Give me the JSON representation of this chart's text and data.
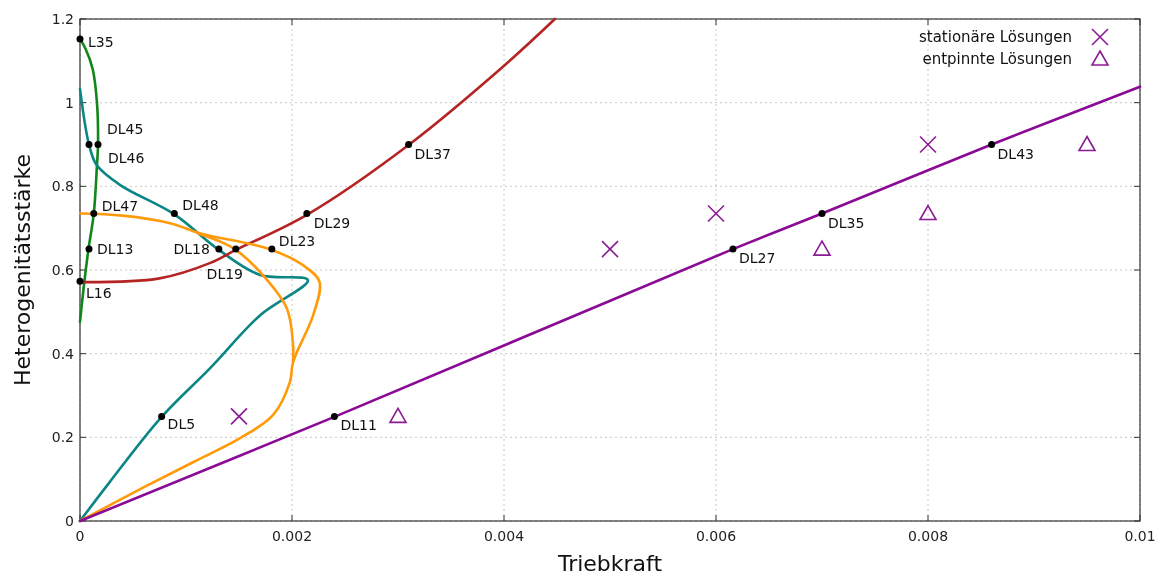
{
  "chart_data": {
    "type": "line",
    "xlabel": "Triebkraft",
    "ylabel": "Heterogenitätsstärke",
    "xlim": [
      0,
      0.01
    ],
    "ylim": [
      0,
      1.2
    ],
    "xticks": [
      0,
      0.002,
      0.004,
      0.006,
      0.008,
      0.01
    ],
    "yticks": [
      0,
      0.2,
      0.4,
      0.6,
      0.8,
      1,
      1.2
    ],
    "grid": true,
    "legend": "top right",
    "line_style": "solid",
    "series": [
      {
        "color": "#11861a",
        "x": [
          0,
          4e-05,
          8e-05,
          0.00013,
          0.00016,
          0.00017,
          0.00016,
          0.00012,
          5e-05,
          0
        ],
        "values": [
          0.476,
          0.57,
          0.65,
          0.735,
          0.85,
          0.9,
          1.0,
          1.08,
          1.13,
          1.152
        ]
      },
      {
        "color": "#0c8585",
        "x": [
          0,
          8.5e-05,
          0.000157,
          0.00038,
          0.00089,
          0.00131,
          0.0017,
          0.00215,
          0.0017,
          0.00123,
          0.00076,
          0.00028,
          0
        ],
        "values": [
          1.033,
          0.9,
          0.851,
          0.803,
          0.733,
          0.648,
          0.588,
          0.576,
          0.492,
          0.366,
          0.246,
          0.093,
          0
        ]
      },
      {
        "color": "#b52323",
        "x": [
          0,
          0.00075,
          0.00123,
          0.00147,
          0.00214,
          0.0031,
          0.00399,
          0.00448
        ],
        "values": [
          0.571,
          0.58,
          0.617,
          0.648,
          0.732,
          0.899,
          1.086,
          1.2
        ]
      },
      {
        "color": "#ff9a0a",
        "x": [
          0,
          0.0004,
          0.00085,
          0.00113,
          0.00181,
          0.00214,
          0.00226,
          0.0022,
          0.00201,
          0.00198,
          0.00182,
          0.00151,
          0.00107,
          0.00059,
          0
        ],
        "values": [
          0.735,
          0.73,
          0.712,
          0.688,
          0.648,
          0.605,
          0.571,
          0.492,
          0.38,
          0.332,
          0.253,
          0.198,
          0.141,
          0.079,
          0
        ]
      },
      {
        "color": "#ff9a0a",
        "x": [
          0.00111,
          0.00135,
          0.00147,
          0.0017,
          0.00195,
          0.00201,
          0.00201
        ],
        "values": [
          0.688,
          0.665,
          0.648,
          0.595,
          0.509,
          0.42,
          0.38
        ]
      },
      {
        "color": "#8a0a95",
        "x": [
          0,
          0.0024,
          0.00616,
          0.007,
          0.0086,
          0.01
        ],
        "values": [
          0,
          0.249,
          0.65,
          0.735,
          0.9,
          1.038
        ]
      },
      {
        "type": "scatter",
        "marker": "circle",
        "color": "#000000",
        "x": [
          0,
          8.5e-05,
          0.00017,
          0.00013,
          8.5e-05,
          0,
          0.00089,
          0.00131,
          0.00147,
          0.00181,
          0.00214,
          0.0031,
          0.00077,
          0.0024,
          0.00616,
          0.007,
          0.0086
        ],
        "values": [
          1.152,
          0.9,
          0.9,
          0.735,
          0.65,
          0.573,
          0.735,
          0.65,
          0.65,
          0.65,
          0.735,
          0.9,
          0.25,
          0.25,
          0.65,
          0.735,
          0.9
        ]
      },
      {
        "type": "scatter",
        "marker": "cross",
        "name": "stationäre Lösungen",
        "color": "#8a1a95",
        "x": [
          0.0015,
          0.005,
          0.006,
          0.008
        ],
        "values": [
          0.25,
          0.65,
          0.735,
          0.9
        ]
      },
      {
        "type": "scatter",
        "marker": "triangle",
        "name": "entpinnte Lösungen",
        "color": "#8a1a95",
        "x": [
          0.003,
          0.007,
          0.008,
          0.0095
        ],
        "values": [
          0.25,
          0.65,
          0.735,
          0.9
        ]
      }
    ],
    "annotations": [
      {
        "text": "L35",
        "x": 0,
        "y": 1.152
      },
      {
        "text": "DL45",
        "x": 8.5e-05,
        "y": 0.9
      },
      {
        "text": "DL46",
        "x": 0.00017,
        "y": 0.9
      },
      {
        "text": "DL47",
        "x": 0.00013,
        "y": 0.735
      },
      {
        "text": "DL13",
        "x": 8.5e-05,
        "y": 0.65
      },
      {
        "text": "L16",
        "x": 0,
        "y": 0.573
      },
      {
        "text": "DL48",
        "x": 0.00089,
        "y": 0.735
      },
      {
        "text": "DL18",
        "x": 0.00131,
        "y": 0.65
      },
      {
        "text": "DL19",
        "x": 0.00147,
        "y": 0.65
      },
      {
        "text": "DL23",
        "x": 0.00181,
        "y": 0.65
      },
      {
        "text": "DL29",
        "x": 0.00214,
        "y": 0.735
      },
      {
        "text": "DL37",
        "x": 0.0031,
        "y": 0.9
      },
      {
        "text": "DL5",
        "x": 0.00077,
        "y": 0.25
      },
      {
        "text": "DL11",
        "x": 0.0024,
        "y": 0.25
      },
      {
        "text": "DL27",
        "x": 0.00616,
        "y": 0.65
      },
      {
        "text": "DL35",
        "x": 0.007,
        "y": 0.735
      },
      {
        "text": "DL43",
        "x": 0.0086,
        "y": 0.9
      }
    ]
  }
}
